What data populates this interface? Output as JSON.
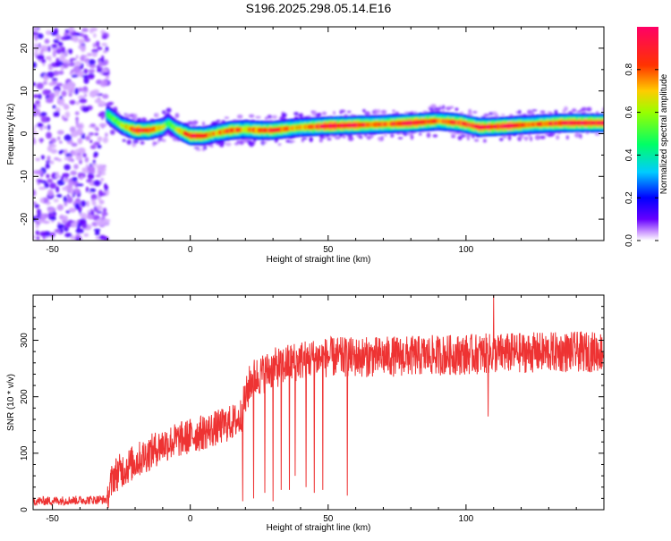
{
  "title": "S196.2025.298.05.14.E16",
  "chart_data": [
    {
      "type": "heatmap",
      "title": "S196.2025.298.05.14.E16",
      "xlabel": "Height of straight line (km)",
      "ylabel": "Frequency (Hz)",
      "xlim": [
        -57,
        150
      ],
      "ylim": [
        -25,
        25
      ],
      "xticks": [
        -50,
        0,
        50,
        100
      ],
      "yticks": [
        20,
        10,
        0,
        -10,
        -20
      ],
      "colorbar": {
        "label": "Normalized spectral amplitude",
        "range": [
          0,
          1
        ],
        "ticks": [
          "0.0",
          "0.2",
          "0.4",
          "0.6",
          "0.8"
        ],
        "tick_values": [
          0,
          0.2,
          0.4,
          0.6,
          0.8
        ],
        "colors": [
          "#ffffff",
          "#cc99ff",
          "#6600ff",
          "#0000ff",
          "#00ccff",
          "#00ff66",
          "#ccff00",
          "#ffaa00",
          "#ff3300",
          "#ff0066"
        ]
      },
      "ridge": [
        {
          "x": -30,
          "freq": 4.5,
          "amp": 0.5
        },
        {
          "x": -25,
          "freq": 2.0,
          "amp": 0.55
        },
        {
          "x": -20,
          "freq": 0.8,
          "amp": 0.9
        },
        {
          "x": -15,
          "freq": 0.8,
          "amp": 0.85
        },
        {
          "x": -10,
          "freq": 1.5,
          "amp": 0.6
        },
        {
          "x": -8,
          "freq": 2.5,
          "amp": 0.5
        },
        {
          "x": -5,
          "freq": 1.0,
          "amp": 0.55
        },
        {
          "x": 0,
          "freq": -0.5,
          "amp": 0.9
        },
        {
          "x": 5,
          "freq": -0.5,
          "amp": 0.8
        },
        {
          "x": 10,
          "freq": 0.2,
          "amp": 0.7
        },
        {
          "x": 15,
          "freq": 0.8,
          "amp": 0.85
        },
        {
          "x": 20,
          "freq": 1.0,
          "amp": 0.7
        },
        {
          "x": 25,
          "freq": 0.8,
          "amp": 0.8
        },
        {
          "x": 30,
          "freq": 0.8,
          "amp": 0.85
        },
        {
          "x": 40,
          "freq": 1.5,
          "amp": 0.7
        },
        {
          "x": 50,
          "freq": 1.8,
          "amp": 0.95
        },
        {
          "x": 60,
          "freq": 2.0,
          "amp": 0.9
        },
        {
          "x": 70,
          "freq": 2.2,
          "amp": 0.8
        },
        {
          "x": 80,
          "freq": 2.5,
          "amp": 0.95
        },
        {
          "x": 90,
          "freq": 3.0,
          "amp": 0.75
        },
        {
          "x": 98,
          "freq": 2.5,
          "amp": 0.85
        },
        {
          "x": 105,
          "freq": 1.5,
          "amp": 0.9
        },
        {
          "x": 115,
          "freq": 1.8,
          "amp": 0.9
        },
        {
          "x": 125,
          "freq": 2.2,
          "amp": 0.75
        },
        {
          "x": 135,
          "freq": 2.5,
          "amp": 0.9
        },
        {
          "x": 150,
          "freq": 2.5,
          "amp": 0.9
        }
      ],
      "noise_region_x": [
        -57,
        -30
      ]
    },
    {
      "type": "line",
      "xlabel": "Height of straight line (km)",
      "ylabel": "SNR (10 * v/v)",
      "xlim": [
        -57,
        150
      ],
      "ylim": [
        0,
        380
      ],
      "xticks": [
        -50,
        0,
        50,
        100
      ],
      "yticks": [
        0,
        100,
        200,
        300
      ],
      "color": "#ee3333",
      "trend": [
        {
          "x": -57,
          "y": 15
        },
        {
          "x": -30,
          "y": 18
        },
        {
          "x": -28,
          "y": 60
        },
        {
          "x": -20,
          "y": 85
        },
        {
          "x": -10,
          "y": 115
        },
        {
          "x": 0,
          "y": 130
        },
        {
          "x": 10,
          "y": 145
        },
        {
          "x": 18,
          "y": 160
        },
        {
          "x": 22,
          "y": 230
        },
        {
          "x": 30,
          "y": 250
        },
        {
          "x": 40,
          "y": 265
        },
        {
          "x": 50,
          "y": 270
        },
        {
          "x": 60,
          "y": 270
        },
        {
          "x": 80,
          "y": 272
        },
        {
          "x": 100,
          "y": 275
        },
        {
          "x": 120,
          "y": 278
        },
        {
          "x": 150,
          "y": 280
        }
      ],
      "dropouts": [
        {
          "x": 19,
          "y": 15
        },
        {
          "x": 23,
          "y": 20
        },
        {
          "x": 27,
          "y": 30
        },
        {
          "x": 30,
          "y": 15
        },
        {
          "x": 33,
          "y": 35
        },
        {
          "x": 36,
          "y": 35
        },
        {
          "x": 38,
          "y": 60
        },
        {
          "x": 42,
          "y": 40
        },
        {
          "x": 45,
          "y": 30
        },
        {
          "x": 48,
          "y": 35
        },
        {
          "x": 57,
          "y": 25
        }
      ],
      "spikes": [
        {
          "x": 110,
          "y": 380
        },
        {
          "x": 108,
          "y": 165
        }
      ]
    }
  ]
}
